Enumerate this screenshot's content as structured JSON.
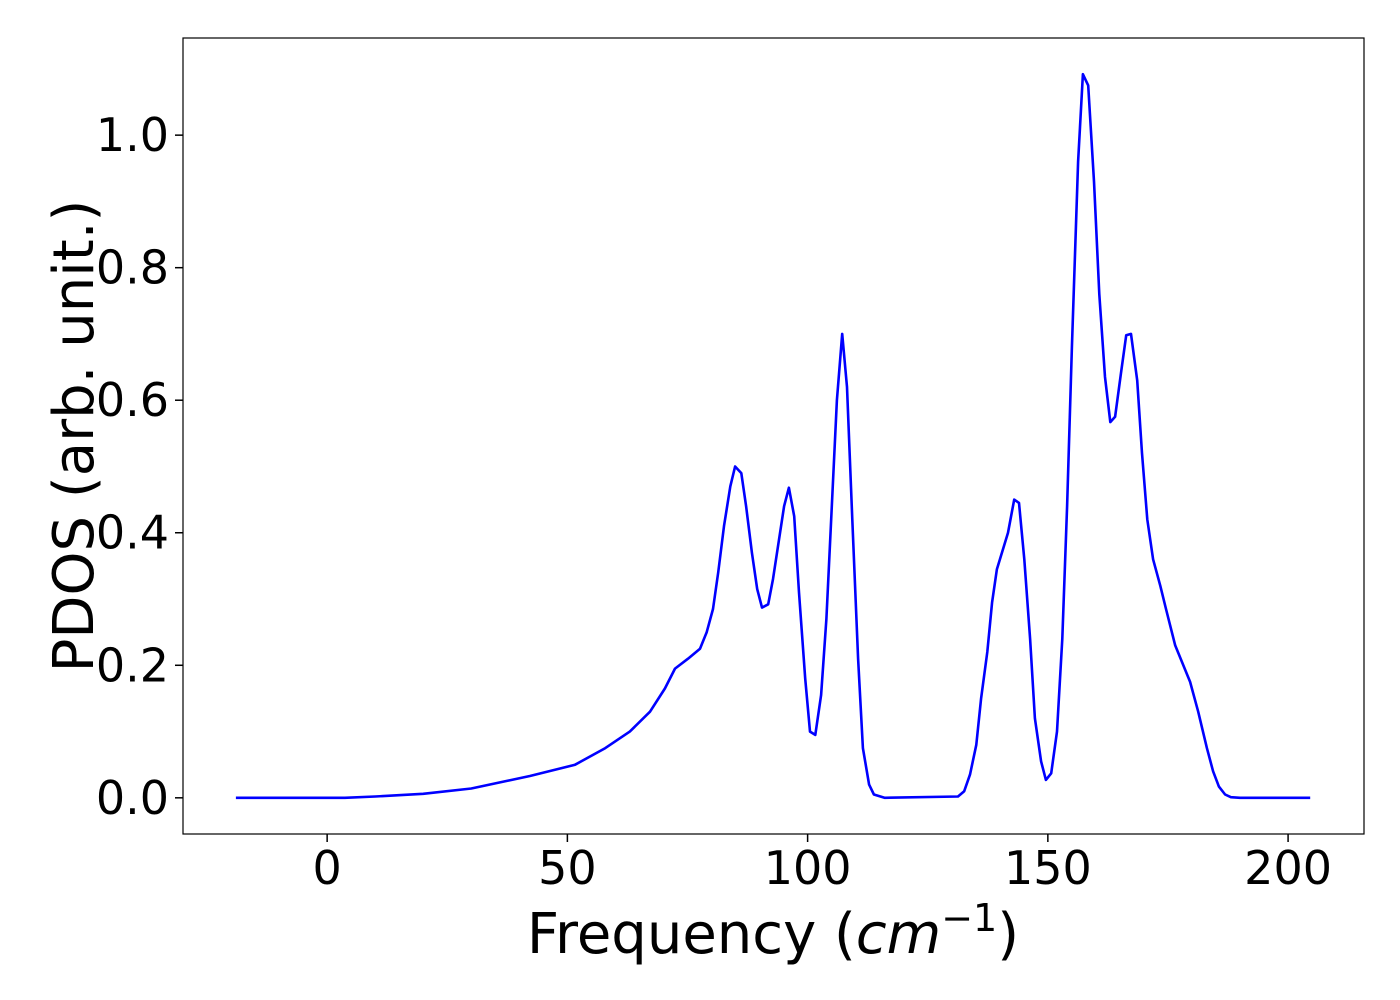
{
  "chart_data": {
    "type": "line",
    "xlabel": [
      "Frequency (",
      "cm",
      "−1",
      ")"
    ],
    "ylabel": "PDOS (arb. unit.)",
    "xlim": [
      -30,
      215.8
    ],
    "ylim": [
      -0.0546,
      1.1466
    ],
    "xticks": [
      0,
      50,
      100,
      150,
      200
    ],
    "yticks": [
      {
        "value": 0,
        "label": "0.0"
      },
      {
        "value": 0.2,
        "label": "0.2"
      },
      {
        "value": 0.4,
        "label": "0.4"
      },
      {
        "value": 0.6,
        "label": "0.6"
      },
      {
        "value": 0.8,
        "label": "0.8"
      },
      {
        "value": 1.0,
        "label": "1.0"
      }
    ],
    "series": [
      {
        "color": "#0000ff",
        "x": [
          -19,
          3.7,
          10,
          20,
          30,
          42.2,
          51.6,
          57.9,
          63,
          67.2,
          70.3,
          72.4,
          75.1,
          77.6,
          79,
          80.3,
          81.4,
          82.6,
          83.9,
          84.9,
          86.2,
          87.2,
          88.4,
          89.5,
          90.5,
          91.8,
          92.8,
          95.1,
          96.1,
          97.2,
          98.2,
          99.5,
          100.5,
          101.6,
          102.8,
          103.9,
          106.1,
          107.2,
          108.2,
          109.3,
          110.5,
          111.5,
          112.8,
          113.8,
          116,
          131.3,
          132.6,
          133.8,
          135.1,
          136.1,
          137.4,
          138.4,
          139.4,
          141.7,
          143,
          144,
          145.1,
          146.3,
          147.3,
          148.6,
          149.6,
          150.7,
          151.9,
          153,
          154,
          155,
          156.3,
          157.3,
          158.4,
          159.6,
          160.7,
          161.9,
          163,
          164,
          165.2,
          166.3,
          167.3,
          168.6,
          169.6,
          170.7,
          171.9,
          173.4,
          174.6,
          176.5,
          179.6,
          181.3,
          183.1,
          184.4,
          185.6,
          186.9,
          188.1,
          190,
          204.6
        ],
        "values": [
          0,
          0,
          0.002,
          0.006,
          0.014,
          0.033,
          0.05,
          0.075,
          0.1,
          0.13,
          0.165,
          0.195,
          0.21,
          0.225,
          0.25,
          0.285,
          0.34,
          0.41,
          0.47,
          0.5,
          0.49,
          0.44,
          0.37,
          0.315,
          0.287,
          0.292,
          0.33,
          0.44,
          0.468,
          0.425,
          0.31,
          0.18,
          0.1,
          0.095,
          0.155,
          0.27,
          0.6,
          0.7,
          0.62,
          0.42,
          0.21,
          0.075,
          0.02,
          0.005,
          0,
          0.002,
          0.01,
          0.035,
          0.08,
          0.15,
          0.22,
          0.295,
          0.345,
          0.4,
          0.45,
          0.445,
          0.36,
          0.24,
          0.12,
          0.055,
          0.027,
          0.037,
          0.1,
          0.24,
          0.44,
          0.68,
          0.96,
          1.092,
          1.075,
          0.93,
          0.76,
          0.635,
          0.567,
          0.575,
          0.64,
          0.698,
          0.7,
          0.63,
          0.52,
          0.42,
          0.36,
          0.32,
          0.285,
          0.23,
          0.175,
          0.13,
          0.075,
          0.04,
          0.017,
          0.005,
          0.001,
          0,
          0
        ]
      }
    ]
  }
}
